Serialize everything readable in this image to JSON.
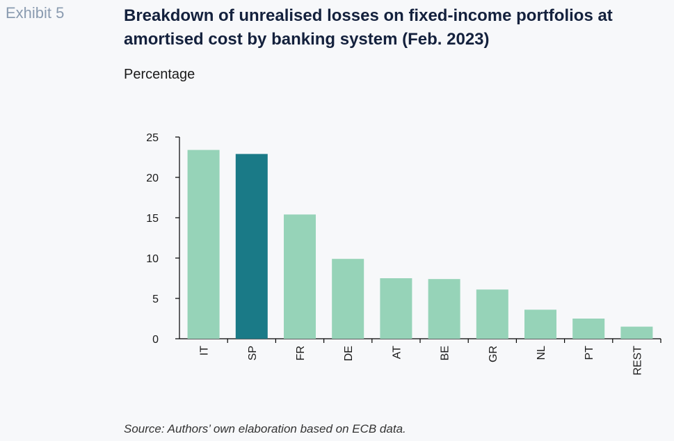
{
  "header": {
    "exhibit": "Exhibit 5",
    "title": "Breakdown of unrealised losses on fixed-income portfolios at amortised cost by banking system (Feb. 2023)"
  },
  "footer": {
    "source": "Source: Authors’ own elaboration based on ECB data."
  },
  "colors": {
    "bar_default": "#96d3b8",
    "bar_highlight": "#1a7a87"
  },
  "chart_data": {
    "type": "bar",
    "title": "Breakdown of unrealised losses on fixed-income portfolios at amortised cost by banking system (Feb. 2023)",
    "ylabel": "Percentage",
    "xlabel": "",
    "ylim": [
      0,
      25
    ],
    "yticks": [
      0,
      5,
      10,
      15,
      20,
      25
    ],
    "grid": false,
    "categories": [
      "IT",
      "SP",
      "FR",
      "DE",
      "AT",
      "BE",
      "GR",
      "NL",
      "PT",
      "REST"
    ],
    "values": [
      23.4,
      22.9,
      15.4,
      9.9,
      7.5,
      7.4,
      6.1,
      3.6,
      2.5,
      1.5
    ],
    "highlight": [
      "SP"
    ]
  }
}
